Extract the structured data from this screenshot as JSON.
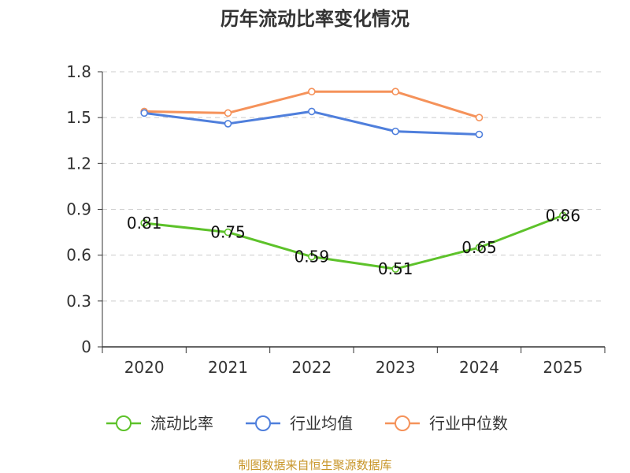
{
  "chart_data": {
    "type": "line",
    "title": "历年流动比率变化情况",
    "categories": [
      "2020",
      "2021",
      "2022",
      "2023",
      "2024",
      "2025"
    ],
    "ylim": [
      0,
      1.8
    ],
    "yticks": [
      "0",
      "0.3",
      "0.6",
      "0.9",
      "1.2",
      "1.5",
      "1.8"
    ],
    "grid": true,
    "legend_position": "bottom",
    "series": [
      {
        "name": "流动比率",
        "color": "#5dc22a",
        "values": [
          0.81,
          0.75,
          0.59,
          0.51,
          0.65,
          0.86
        ],
        "labels": [
          "0.81",
          "0.75",
          "0.59",
          "0.51",
          "0.65",
          "0.86"
        ]
      },
      {
        "name": "行业均值",
        "color": "#4f7fdc",
        "values": [
          1.53,
          1.46,
          1.54,
          1.41,
          1.39,
          null
        ]
      },
      {
        "name": "行业中位数",
        "color": "#f5925a",
        "values": [
          1.54,
          1.53,
          1.67,
          1.67,
          1.5,
          null
        ]
      }
    ]
  },
  "source_text": "制图数据来自恒生聚源数据库"
}
